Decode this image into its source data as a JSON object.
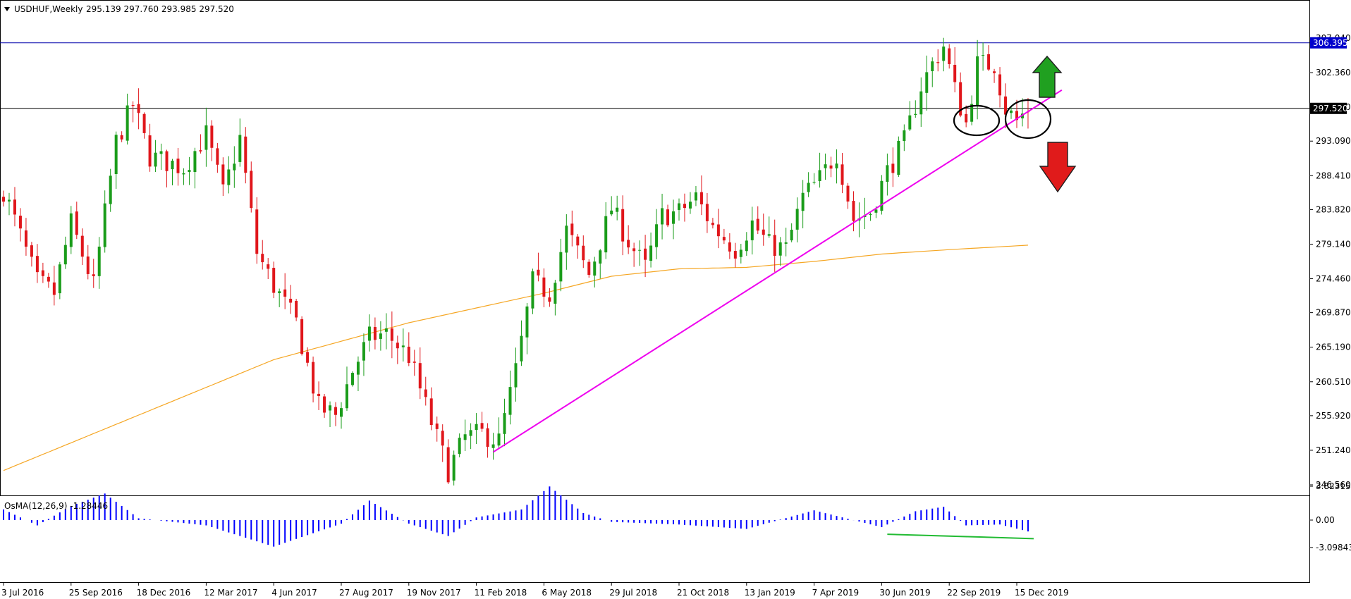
{
  "header": {
    "symbol": "USDHUF,Weekly",
    "ohlc": "295.139 297.760 293.985 297.520"
  },
  "indicator": {
    "label": "OsMA(12,26,9) -1.28446"
  },
  "colors": {
    "bull": "#1a9c1a",
    "bear": "#e0161b",
    "ma": "#f5a623",
    "trendline": "#ee00ee",
    "hist": "#0000ff",
    "divergence": "#22bb33",
    "price_badge_bg": "#000000",
    "hline_badge_bg": "#0000cc"
  },
  "chart_data": [
    {
      "type": "candlestick",
      "title": "USDHUF,Weekly",
      "ylim": [
        244.0,
        309.0
      ],
      "price_ticks": [
        "307.040",
        "302.360",
        "297.680",
        "293.090",
        "288.410",
        "283.820",
        "279.140",
        "274.460",
        "269.870",
        "265.190",
        "260.510",
        "255.920",
        "251.240",
        "246.560"
      ],
      "date_ticks": [
        "3 Jul 2016",
        "25 Sep 2016",
        "18 Dec 2016",
        "12 Mar 2017",
        "4 Jun 2017",
        "27 Aug 2017",
        "19 Nov 2017",
        "11 Feb 2018",
        "6 May 2018",
        "29 Jul 2018",
        "21 Oct 2018",
        "13 Jan 2019",
        "7 Apr 2019",
        "30 Jun 2019",
        "22 Sep 2019",
        "15 Dec 2019"
      ],
      "current_price": "297.520",
      "horizontal_line_price": "306.395",
      "close_anchors": [
        {
          "date": "3 Jul 2016",
          "close": 286.5
        },
        {
          "date": "14 Aug 2016",
          "close": 274.0
        },
        {
          "date": "4 Sep 2016",
          "close": 272.5
        },
        {
          "date": "25 Sep 2016",
          "close": 282.0
        },
        {
          "date": "23 Oct 2016",
          "close": 273.5
        },
        {
          "date": "20 Nov 2016",
          "close": 293.0
        },
        {
          "date": "11 Dec 2016",
          "close": 298.0
        },
        {
          "date": "1 Jan 2017",
          "close": 291.0
        },
        {
          "date": "12 Feb 2017",
          "close": 289.5
        },
        {
          "date": "12 Mar 2017",
          "close": 294.0
        },
        {
          "date": "2 Apr 2017",
          "close": 286.0
        },
        {
          "date": "23 Apr 2017",
          "close": 293.5
        },
        {
          "date": "14 May 2017",
          "close": 278.0
        },
        {
          "date": "4 Jun 2017",
          "close": 273.5
        },
        {
          "date": "2 Jul 2017",
          "close": 268.5
        },
        {
          "date": "30 Jul 2017",
          "close": 257.0
        },
        {
          "date": "20 Aug 2017",
          "close": 256.0
        },
        {
          "date": "10 Sep 2017",
          "close": 262.0
        },
        {
          "date": "1 Oct 2017",
          "close": 266.5
        },
        {
          "date": "22 Oct 2017",
          "close": 267.0
        },
        {
          "date": "19 Nov 2017",
          "close": 264.0
        },
        {
          "date": "17 Dec 2017",
          "close": 255.0
        },
        {
          "date": "7 Jan 2018",
          "close": 248.5
        },
        {
          "date": "28 Jan 2018",
          "close": 253.0
        },
        {
          "date": "18 Feb 2018",
          "close": 253.5
        },
        {
          "date": "11 Mar 2018",
          "close": 252.5
        },
        {
          "date": "1 Apr 2018",
          "close": 262.0
        },
        {
          "date": "22 Apr 2018",
          "close": 274.0
        },
        {
          "date": "13 May 2018",
          "close": 272.5
        },
        {
          "date": "3 Jun 2018",
          "close": 281.0
        },
        {
          "date": "1 Jul 2018",
          "close": 275.0
        },
        {
          "date": "29 Jul 2018",
          "close": 284.0
        },
        {
          "date": "19 Aug 2018",
          "close": 279.5
        },
        {
          "date": "9 Sep 2018",
          "close": 276.0
        },
        {
          "date": "30 Sep 2018",
          "close": 283.0
        },
        {
          "date": "21 Oct 2018",
          "close": 283.5
        },
        {
          "date": "11 Nov 2018",
          "close": 285.5
        },
        {
          "date": "2 Dec 2018",
          "close": 281.5
        },
        {
          "date": "30 Dec 2018",
          "close": 278.5
        },
        {
          "date": "20 Jan 2019",
          "close": 282.0
        },
        {
          "date": "10 Feb 2019",
          "close": 279.0
        },
        {
          "date": "3 Mar 2019",
          "close": 278.5
        },
        {
          "date": "24 Mar 2019",
          "close": 285.5
        },
        {
          "date": "14 Apr 2019",
          "close": 288.0
        },
        {
          "date": "5 May 2019",
          "close": 291.5
        },
        {
          "date": "26 May 2019",
          "close": 282.5
        },
        {
          "date": "16 Jun 2019",
          "close": 283.5
        },
        {
          "date": "7 Jul 2019",
          "close": 289.0
        },
        {
          "date": "28 Jul 2019",
          "close": 293.0
        },
        {
          "date": "18 Aug 2019",
          "close": 300.5
        },
        {
          "date": "1 Sep 2019",
          "close": 303.5
        },
        {
          "date": "15 Sep 2019",
          "close": 306.0
        },
        {
          "date": "29 Sep 2019",
          "close": 300.0
        },
        {
          "date": "13 Oct 2019",
          "close": 295.5
        },
        {
          "date": "27 Oct 2019",
          "close": 303.5
        },
        {
          "date": "17 Nov 2019",
          "close": 303.5
        },
        {
          "date": "1 Dec 2019",
          "close": 297.5
        },
        {
          "date": "15 Dec 2019",
          "close": 295.8
        },
        {
          "date": "29 Dec 2019",
          "close": 297.5
        }
      ],
      "moving_average": [
        {
          "date": "3 Jul 2016",
          "value": 248.5
        },
        {
          "date": "4 Jun 2017",
          "value": 263.5
        },
        {
          "date": "19 Nov 2017",
          "value": 268.5
        },
        {
          "date": "6 May 2018",
          "value": 272.5
        },
        {
          "date": "29 Jul 2018",
          "value": 274.8
        },
        {
          "date": "21 Oct 2018",
          "value": 275.8
        },
        {
          "date": "13 Jan 2019",
          "value": 276.0
        },
        {
          "date": "7 Apr 2019",
          "value": 276.8
        },
        {
          "date": "30 Jun 2019",
          "value": 277.8
        },
        {
          "date": "22 Sep 2019",
          "value": 278.4
        },
        {
          "date": "29 Dec 2019",
          "value": 279.0
        }
      ],
      "trendline": [
        {
          "date": "4 Mar 2018",
          "price": 251.0
        },
        {
          "date": "9 Feb 2020",
          "price": 300.0
        }
      ]
    },
    {
      "type": "bar",
      "title": "OsMA(12,26,9) -1.28446",
      "ylim": [
        -3.6,
        4.2
      ],
      "y_ticks": [
        "3.82315",
        "0.00",
        "-3.09843"
      ],
      "osma_anchors": [
        {
          "date": "3 Jul 2016",
          "value": 1.2
        },
        {
          "date": "14 Aug 2016",
          "value": -0.6
        },
        {
          "date": "25 Sep 2016",
          "value": 1.6
        },
        {
          "date": "6 Nov 2016",
          "value": 3.0
        },
        {
          "date": "18 Dec 2016",
          "value": 0.2
        },
        {
          "date": "12 Mar 2017",
          "value": -0.6
        },
        {
          "date": "4 Jun 2017",
          "value": -3.0
        },
        {
          "date": "27 Aug 2017",
          "value": -0.4
        },
        {
          "date": "1 Oct 2017",
          "value": 2.2
        },
        {
          "date": "19 Nov 2017",
          "value": -0.4
        },
        {
          "date": "7 Jan 2018",
          "value": -1.8
        },
        {
          "date": "11 Feb 2018",
          "value": 0.3
        },
        {
          "date": "8 Apr 2018",
          "value": 1.2
        },
        {
          "date": "13 May 2018",
          "value": 3.8
        },
        {
          "date": "24 Jun 2018",
          "value": 0.8
        },
        {
          "date": "29 Jul 2018",
          "value": -0.2
        },
        {
          "date": "21 Oct 2018",
          "value": -0.5
        },
        {
          "date": "13 Jan 2019",
          "value": -1.0
        },
        {
          "date": "7 Apr 2019",
          "value": 1.1
        },
        {
          "date": "30 Jun 2019",
          "value": -0.8
        },
        {
          "date": "11 Aug 2019",
          "value": 1.0
        },
        {
          "date": "15 Sep 2019",
          "value": 1.5
        },
        {
          "date": "13 Oct 2019",
          "value": -0.6
        },
        {
          "date": "24 Nov 2019",
          "value": -0.5
        },
        {
          "date": "29 Dec 2019",
          "value": -1.28446
        }
      ],
      "divergence_line": [
        {
          "date": "7 Jul 2019",
          "value": -1.6
        },
        {
          "date": "5 Jan 2020",
          "value": -2.1
        }
      ]
    }
  ],
  "annotations": {
    "up_arrow": "green-up-arrow",
    "down_arrow": "red-down-arrow",
    "ellipses": [
      "ellipse-left-sep-2019",
      "ellipse-right-dec-2019"
    ]
  }
}
